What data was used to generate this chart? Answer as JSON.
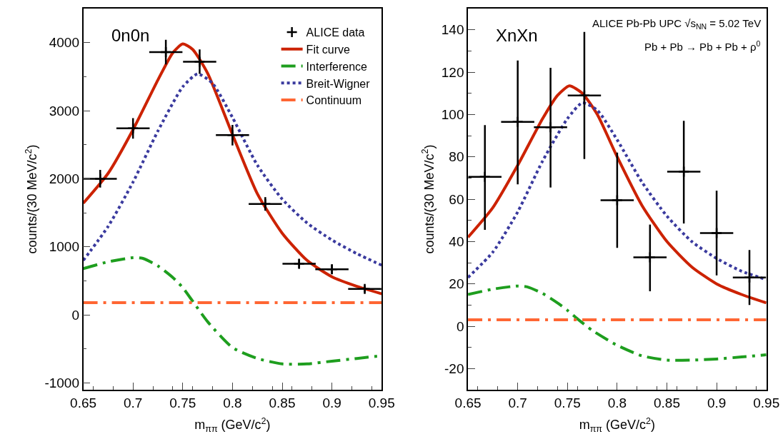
{
  "chart_data": [
    {
      "type": "line",
      "xlabel": "m$_{ππ}$ (GeV/c$^{2}$)",
      "ylabel": "counts/(30 MeV/c$^{2}$)",
      "annotations": [
        "0n0n"
      ],
      "xlim": [
        0.65,
        0.95
      ],
      "xticks": [
        0.65,
        0.7,
        0.75,
        0.8,
        0.85,
        0.9,
        0.95
      ],
      "ylim": [
        -1100,
        4500
      ],
      "yticks": [
        -1000,
        0,
        1000,
        2000,
        3000,
        4000
      ],
      "legend": "top right",
      "series": [
        {
          "name": "ALICE data",
          "type": "scatter",
          "marker": "cross",
          "color": "#000000",
          "x": [
            0.667,
            0.7,
            0.733,
            0.767,
            0.8,
            0.833,
            0.867,
            0.9,
            0.933
          ],
          "values": [
            2000,
            2740,
            3860,
            3720,
            2640,
            1630,
            750,
            670,
            380
          ],
          "errors": [
            130,
            150,
            180,
            180,
            150,
            100,
            70,
            70,
            50
          ],
          "xerrors": [
            0.0167,
            0.0167,
            0.0167,
            0.0167,
            0.0167,
            0.0167,
            0.0167,
            0.0167,
            0.0167
          ]
        },
        {
          "name": "Fit curve",
          "line_style": "solid",
          "color": "#cc2200",
          "x": [
            0.65,
            0.675,
            0.7,
            0.725,
            0.74,
            0.75,
            0.76,
            0.775,
            0.8,
            0.825,
            0.85,
            0.875,
            0.9,
            0.925,
            0.95
          ],
          "values": [
            1640,
            2080,
            2720,
            3450,
            3850,
            3980,
            3900,
            3550,
            2650,
            1780,
            1200,
            800,
            560,
            420,
            310
          ]
        },
        {
          "name": "Interference",
          "line_style": "dashed",
          "color": "#1e9e1e",
          "x": [
            0.65,
            0.675,
            0.7,
            0.71,
            0.725,
            0.74,
            0.75,
            0.76,
            0.775,
            0.8,
            0.825,
            0.85,
            0.875,
            0.9,
            0.925,
            0.95
          ],
          "values": [
            680,
            780,
            840,
            830,
            720,
            550,
            400,
            200,
            -100,
            -480,
            -640,
            -720,
            -720,
            -680,
            -640,
            -600
          ]
        },
        {
          "name": "Breit-Wigner",
          "line_style": "dotted",
          "color": "#3a3a9e",
          "x": [
            0.65,
            0.675,
            0.7,
            0.725,
            0.75,
            0.765,
            0.78,
            0.8,
            0.825,
            0.85,
            0.875,
            0.9,
            0.925,
            0.95
          ],
          "values": [
            800,
            1300,
            1950,
            2700,
            3350,
            3540,
            3400,
            2900,
            2200,
            1700,
            1350,
            1100,
            900,
            730
          ]
        },
        {
          "name": "Continuum",
          "line_style": "dashed",
          "color": "#ff6633",
          "x": [
            0.65,
            0.95
          ],
          "values": [
            180,
            180
          ]
        }
      ]
    },
    {
      "type": "line",
      "xlabel": "m$_{ππ}$ (GeV/c$^{2}$)",
      "ylabel": "counts/(30 MeV/c$^{2}$)",
      "annotations": [
        "XnXn",
        "ALICE Pb-Pb UPC √s$_{NN}$ = 5.02 TeV",
        "Pb + Pb → Pb + Pb + ρ$^{0}$"
      ],
      "xlim": [
        0.65,
        0.95
      ],
      "xticks": [
        0.65,
        0.7,
        0.75,
        0.8,
        0.85,
        0.9,
        0.95
      ],
      "ylim": [
        -30,
        150
      ],
      "yticks": [
        -20,
        0,
        20,
        40,
        60,
        80,
        100,
        120,
        140
      ],
      "series": [
        {
          "type": "scatter",
          "marker": "cross",
          "color": "#000000",
          "x": [
            0.667,
            0.7,
            0.733,
            0.767,
            0.8,
            0.833,
            0.867,
            0.9,
            0.933
          ],
          "values": [
            70.5,
            96.5,
            94,
            109,
            59.5,
            32.5,
            73,
            44,
            23
          ],
          "errors": [
            [
              45.5,
              95
            ],
            [
              67,
              125.5
            ],
            [
              65.5,
              122
            ],
            [
              79,
              139
            ],
            [
              37,
              82
            ],
            [
              16.5,
              48
            ],
            [
              48.5,
              97
            ],
            [
              24,
              64
            ],
            [
              10,
              36
            ]
          ],
          "xerrors": [
            0.0167,
            0.0167,
            0.0167,
            0.0167,
            0.0167,
            0.0167,
            0.0167,
            0.0167,
            0.0167
          ]
        },
        {
          "line_style": "solid",
          "color": "#cc2200",
          "x": [
            0.65,
            0.675,
            0.7,
            0.725,
            0.74,
            0.752,
            0.765,
            0.78,
            0.8,
            0.825,
            0.85,
            0.875,
            0.9,
            0.925,
            0.95
          ],
          "values": [
            42,
            56,
            76,
            98,
            109,
            113.5,
            110,
            100,
            80,
            57,
            40,
            28,
            20,
            15,
            11
          ]
        },
        {
          "line_style": "dashed",
          "color": "#1e9e1e",
          "x": [
            0.65,
            0.675,
            0.7,
            0.71,
            0.725,
            0.74,
            0.75,
            0.76,
            0.775,
            0.8,
            0.825,
            0.85,
            0.875,
            0.9,
            0.925,
            0.95
          ],
          "values": [
            15,
            17.5,
            19,
            18.5,
            15.5,
            11,
            7.5,
            3.5,
            -2,
            -9,
            -14,
            -16,
            -16,
            -15.5,
            -14.5,
            -13.5
          ]
        },
        {
          "line_style": "dotted",
          "color": "#3a3a9e",
          "x": [
            0.65,
            0.675,
            0.7,
            0.725,
            0.75,
            0.765,
            0.78,
            0.8,
            0.825,
            0.85,
            0.875,
            0.9,
            0.925,
            0.95
          ],
          "values": [
            23,
            35,
            54,
            78,
            98,
            105.5,
            102,
            88,
            68,
            52,
            40,
            32,
            26,
            22
          ]
        },
        {
          "line_style": "dashed",
          "color": "#ff6633",
          "x": [
            0.65,
            0.95
          ],
          "values": [
            3,
            3
          ]
        }
      ]
    }
  ]
}
